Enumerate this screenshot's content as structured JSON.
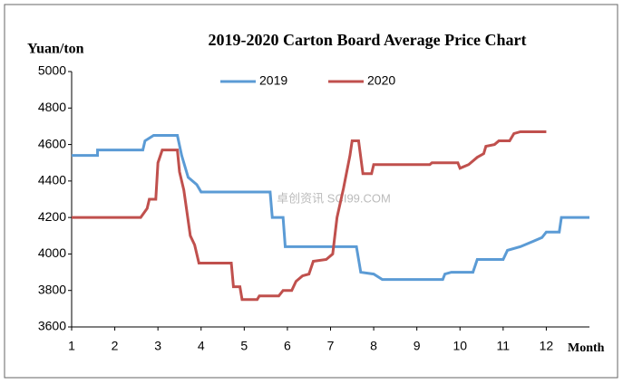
{
  "chart_data": {
    "type": "line",
    "title": "2019-2020 Carton Board Average Price Chart",
    "y_axis_label": "Yuan/ton",
    "x_axis_label": "Month",
    "watermark": "卓创资讯 SCI99.COM",
    "xlim": [
      1,
      13
    ],
    "xticks": [
      1,
      2,
      3,
      4,
      5,
      6,
      7,
      8,
      9,
      10,
      11,
      12
    ],
    "ylim": [
      3600,
      5000
    ],
    "yticks": [
      3600,
      3800,
      4000,
      4200,
      4400,
      4600,
      4800,
      5000
    ],
    "grid": false,
    "legend": "top",
    "series": [
      {
        "name": "2019",
        "color": "#5b9bd5",
        "x": [
          1,
          1.6,
          1.6,
          2.65,
          2.7,
          2.9,
          3.45,
          3.55,
          3.7,
          3.9,
          4.0,
          5.6,
          5.65,
          5.9,
          5.95,
          7.6,
          7.7,
          8.0,
          8.2,
          9.6,
          9.65,
          9.8,
          10.3,
          10.4,
          11.0,
          11.1,
          11.4,
          11.7,
          11.9,
          12.0,
          12.3,
          12.35,
          13.0
        ],
        "values": [
          4540,
          4540,
          4570,
          4570,
          4620,
          4650,
          4650,
          4540,
          4420,
          4380,
          4340,
          4340,
          4200,
          4200,
          4040,
          4040,
          3900,
          3890,
          3860,
          3860,
          3890,
          3900,
          3900,
          3970,
          3970,
          4020,
          4040,
          4070,
          4090,
          4120,
          4120,
          4200,
          4200
        ]
      },
      {
        "name": "2020",
        "color": "#c0504d",
        "x": [
          1,
          2.6,
          2.75,
          2.8,
          2.95,
          3.0,
          3.1,
          3.45,
          3.5,
          3.6,
          3.75,
          3.85,
          3.95,
          4.7,
          4.75,
          4.9,
          4.95,
          5.3,
          5.35,
          5.8,
          5.9,
          6.1,
          6.2,
          6.35,
          6.5,
          6.6,
          6.9,
          7.05,
          7.15,
          7.3,
          7.45,
          7.5,
          7.65,
          7.75,
          7.95,
          8.0,
          9.3,
          9.35,
          9.95,
          10.0,
          10.2,
          10.4,
          10.55,
          10.6,
          10.8,
          10.9,
          11.15,
          11.25,
          11.4,
          12.0
        ],
        "values": [
          4200,
          4200,
          4250,
          4300,
          4300,
          4500,
          4570,
          4570,
          4450,
          4350,
          4100,
          4050,
          3950,
          3950,
          3820,
          3820,
          3750,
          3750,
          3770,
          3770,
          3800,
          3800,
          3850,
          3880,
          3890,
          3960,
          3970,
          4000,
          4200,
          4360,
          4540,
          4620,
          4620,
          4440,
          4440,
          4490,
          4490,
          4500,
          4500,
          4470,
          4490,
          4530,
          4550,
          4590,
          4600,
          4620,
          4620,
          4660,
          4670,
          4670
        ]
      }
    ]
  }
}
